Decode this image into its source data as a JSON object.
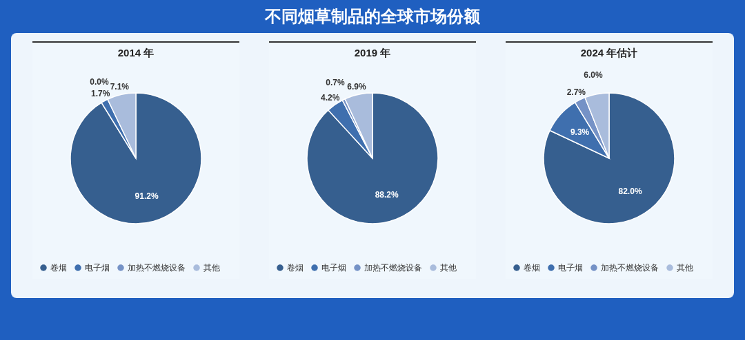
{
  "chart_data": [
    {
      "type": "other",
      "title": "不同烟草制品的全球市场份额"
    },
    {
      "type": "pie",
      "subtitle": "2014 年",
      "categories": [
        "卷烟",
        "电子烟",
        "加热不燃烧设备",
        "其他"
      ],
      "values": [
        91.2,
        1.7,
        0.0,
        7.1
      ],
      "colors": [
        "#365f8f",
        "#3f6fae",
        "#7592c6",
        "#a9bcdc"
      ],
      "value_labels": [
        "91.2%",
        "1.7%",
        "0.0%",
        "7.1%"
      ],
      "legend": "bottom"
    },
    {
      "type": "pie",
      "subtitle": "2019 年",
      "categories": [
        "卷烟",
        "电子烟",
        "加热不燃烧设备",
        "其他"
      ],
      "values": [
        88.2,
        4.2,
        0.7,
        6.9
      ],
      "colors": [
        "#365f8f",
        "#3f6fae",
        "#7592c6",
        "#a9bcdc"
      ],
      "value_labels": [
        "88.2%",
        "4.2%",
        "0.7%",
        "6.9%"
      ],
      "legend": "bottom"
    },
    {
      "type": "pie",
      "subtitle": "2024 年估计",
      "categories": [
        "卷烟",
        "电子烟",
        "加热不燃烧设备",
        "其他"
      ],
      "values": [
        82.0,
        9.3,
        2.7,
        6.0
      ],
      "colors": [
        "#365f8f",
        "#3f6fae",
        "#7592c6",
        "#a9bcdc"
      ],
      "value_labels": [
        "82.0%",
        "9.3%",
        "2.7%",
        "6.0%"
      ],
      "legend": "bottom"
    }
  ]
}
